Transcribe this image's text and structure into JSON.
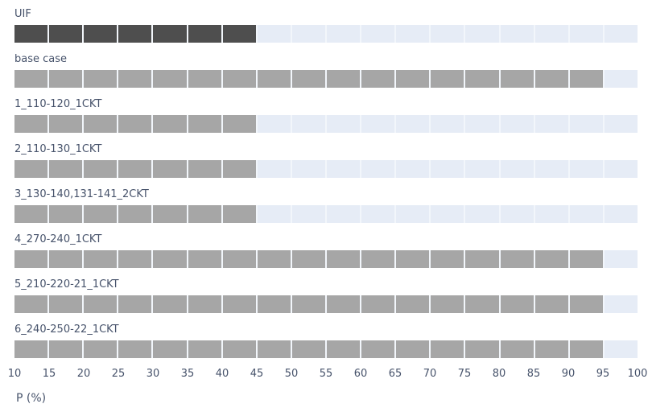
{
  "chart_data": {
    "type": "bar",
    "orientation": "horizontal",
    "title": "",
    "xlabel": "P (%)",
    "ylabel": "",
    "xlim": [
      10,
      100
    ],
    "tick_step": 5,
    "xticks": [
      10,
      15,
      20,
      25,
      30,
      35,
      40,
      45,
      50,
      55,
      60,
      65,
      70,
      75,
      80,
      85,
      90,
      95,
      100
    ],
    "grid": "white segment separators every 5 units",
    "legend": "none",
    "categories": [
      "UIF",
      "base case",
      "1_110-120_1CKT",
      "2_110-130_1CKT",
      "3_130-140,131-141_2CKT",
      "4_270-240_1CKT",
      "5_210-220-21_1CKT",
      "6_240-250-22_1CKT"
    ],
    "values": [
      45,
      95,
      45,
      45,
      45,
      95,
      95,
      95
    ],
    "bar_styles": [
      "dark",
      "gray",
      "gray",
      "gray",
      "gray",
      "gray",
      "gray",
      "gray"
    ],
    "colors": {
      "dark_bar": "#4e4e4e",
      "gray_bar": "#a6a6a6",
      "track": "#e6ecf6",
      "separator": "#f2f6fb",
      "text": "#47536b"
    }
  }
}
